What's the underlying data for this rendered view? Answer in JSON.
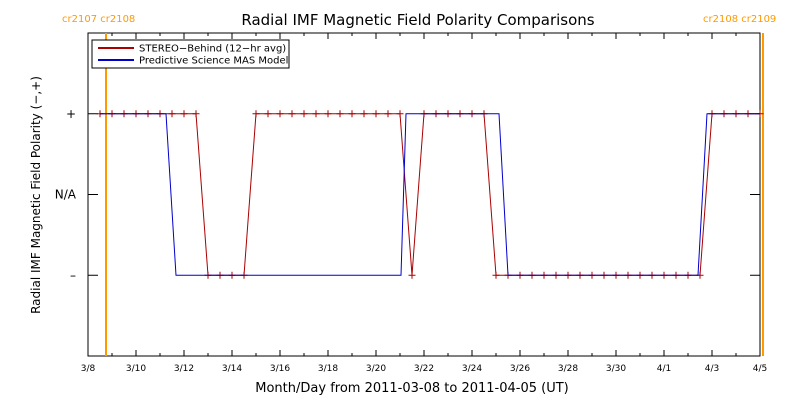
{
  "chart_data": {
    "type": "line",
    "title": "Radial IMF Magnetic Field Polarity Comparisons",
    "xlabel": "Month/Day from 2011-03-08 to 2011-04-05 (UT)",
    "ylabel": "Radial IMF Magnetic Field Polarity (−,+)",
    "x_unit": "day of 2011",
    "xlim": [
      "2011-03-08",
      "2011-04-05"
    ],
    "ylim": [
      -2,
      2
    ],
    "y_ticks": [
      {
        "value": 1,
        "label": "+"
      },
      {
        "value": 0,
        "label": "N/A"
      },
      {
        "value": -1,
        "label": "–"
      }
    ],
    "x_ticks": [
      {
        "date": "2011-03-08",
        "label": "3/8"
      },
      {
        "date": "2011-03-10",
        "label": "3/10"
      },
      {
        "date": "2011-03-12",
        "label": "3/12"
      },
      {
        "date": "2011-03-14",
        "label": "3/14"
      },
      {
        "date": "2011-03-16",
        "label": "3/16"
      },
      {
        "date": "2011-03-18",
        "label": "3/18"
      },
      {
        "date": "2011-03-20",
        "label": "3/20"
      },
      {
        "date": "2011-03-22",
        "label": "3/22"
      },
      {
        "date": "2011-03-24",
        "label": "3/24"
      },
      {
        "date": "2011-03-26",
        "label": "3/26"
      },
      {
        "date": "2011-03-28",
        "label": "3/28"
      },
      {
        "date": "2011-03-30",
        "label": "3/30"
      },
      {
        "date": "2011-04-01",
        "label": "4/1"
      },
      {
        "date": "2011-04-03",
        "label": "4/3"
      },
      {
        "date": "2011-04-05",
        "label": "4/5"
      }
    ],
    "legend": {
      "placement": "top-left"
    },
    "series": [
      {
        "name": "STEREO−Behind (12−hr avg)",
        "color": "#aa0000",
        "markers": "plus",
        "points": [
          [
            "2011-03-08 12:00",
            1
          ],
          [
            "2011-03-09 00:00",
            1
          ],
          [
            "2011-03-09 12:00",
            1
          ],
          [
            "2011-03-10 00:00",
            1
          ],
          [
            "2011-03-10 12:00",
            1
          ],
          [
            "2011-03-11 00:00",
            1
          ],
          [
            "2011-03-11 12:00",
            1
          ],
          [
            "2011-03-12 00:00",
            1
          ],
          [
            "2011-03-12 12:00",
            1
          ],
          [
            "2011-03-13 00:00",
            -1
          ],
          [
            "2011-03-13 12:00",
            -1
          ],
          [
            "2011-03-14 00:00",
            -1
          ],
          [
            "2011-03-14 12:00",
            -1
          ],
          [
            "2011-03-15 00:00",
            1
          ],
          [
            "2011-03-15 12:00",
            1
          ],
          [
            "2011-03-16 00:00",
            1
          ],
          [
            "2011-03-16 12:00",
            1
          ],
          [
            "2011-03-17 00:00",
            1
          ],
          [
            "2011-03-17 12:00",
            1
          ],
          [
            "2011-03-18 00:00",
            1
          ],
          [
            "2011-03-18 12:00",
            1
          ],
          [
            "2011-03-19 00:00",
            1
          ],
          [
            "2011-03-19 12:00",
            1
          ],
          [
            "2011-03-20 00:00",
            1
          ],
          [
            "2011-03-20 12:00",
            1
          ],
          [
            "2011-03-21 00:00",
            1
          ],
          [
            "2011-03-21 12:00",
            -1
          ],
          [
            "2011-03-22 00:00",
            1
          ],
          [
            "2011-03-22 12:00",
            1
          ],
          [
            "2011-03-23 00:00",
            1
          ],
          [
            "2011-03-23 12:00",
            1
          ],
          [
            "2011-03-24 00:00",
            1
          ],
          [
            "2011-03-24 12:00",
            1
          ],
          [
            "2011-03-25 00:00",
            -1
          ],
          [
            "2011-03-25 12:00",
            -1
          ],
          [
            "2011-03-26 00:00",
            -1
          ],
          [
            "2011-03-26 12:00",
            -1
          ],
          [
            "2011-03-27 00:00",
            -1
          ],
          [
            "2011-03-27 12:00",
            -1
          ],
          [
            "2011-03-28 00:00",
            -1
          ],
          [
            "2011-03-28 12:00",
            -1
          ],
          [
            "2011-03-29 00:00",
            -1
          ],
          [
            "2011-03-29 12:00",
            -1
          ],
          [
            "2011-03-30 00:00",
            -1
          ],
          [
            "2011-03-30 12:00",
            -1
          ],
          [
            "2011-03-31 00:00",
            -1
          ],
          [
            "2011-03-31 12:00",
            -1
          ],
          [
            "2011-04-01 00:00",
            -1
          ],
          [
            "2011-04-01 12:00",
            -1
          ],
          [
            "2011-04-02 00:00",
            -1
          ],
          [
            "2011-04-02 12:00",
            -1
          ],
          [
            "2011-04-03 00:00",
            1
          ],
          [
            "2011-04-03 12:00",
            1
          ],
          [
            "2011-04-04 00:00",
            1
          ],
          [
            "2011-04-04 12:00",
            1
          ],
          [
            "2011-04-05 00:00",
            1
          ]
        ]
      },
      {
        "name": "Predictive Science MAS Model",
        "color": "#0000cc",
        "markers": "none",
        "points": [
          [
            "2011-03-08 12:00",
            1
          ],
          [
            "2011-03-11 06:00",
            1
          ],
          [
            "2011-03-11 16:00",
            -1
          ],
          [
            "2011-03-21 01:00",
            -1
          ],
          [
            "2011-03-21 06:00",
            1
          ],
          [
            "2011-03-25 03:00",
            1
          ],
          [
            "2011-03-25 12:00",
            -1
          ],
          [
            "2011-04-02 10:00",
            -1
          ],
          [
            "2011-04-02 19:00",
            1
          ],
          [
            "2011-04-05 00:00",
            1
          ]
        ]
      }
    ],
    "vertical_markers": [
      {
        "date": "2011-03-08 18:00",
        "label": "cr2107 cr2108",
        "color": "#ff9900"
      },
      {
        "date": "2011-04-05 03:00",
        "label": "cr2108 cr2109",
        "color": "#ff9900"
      }
    ]
  }
}
